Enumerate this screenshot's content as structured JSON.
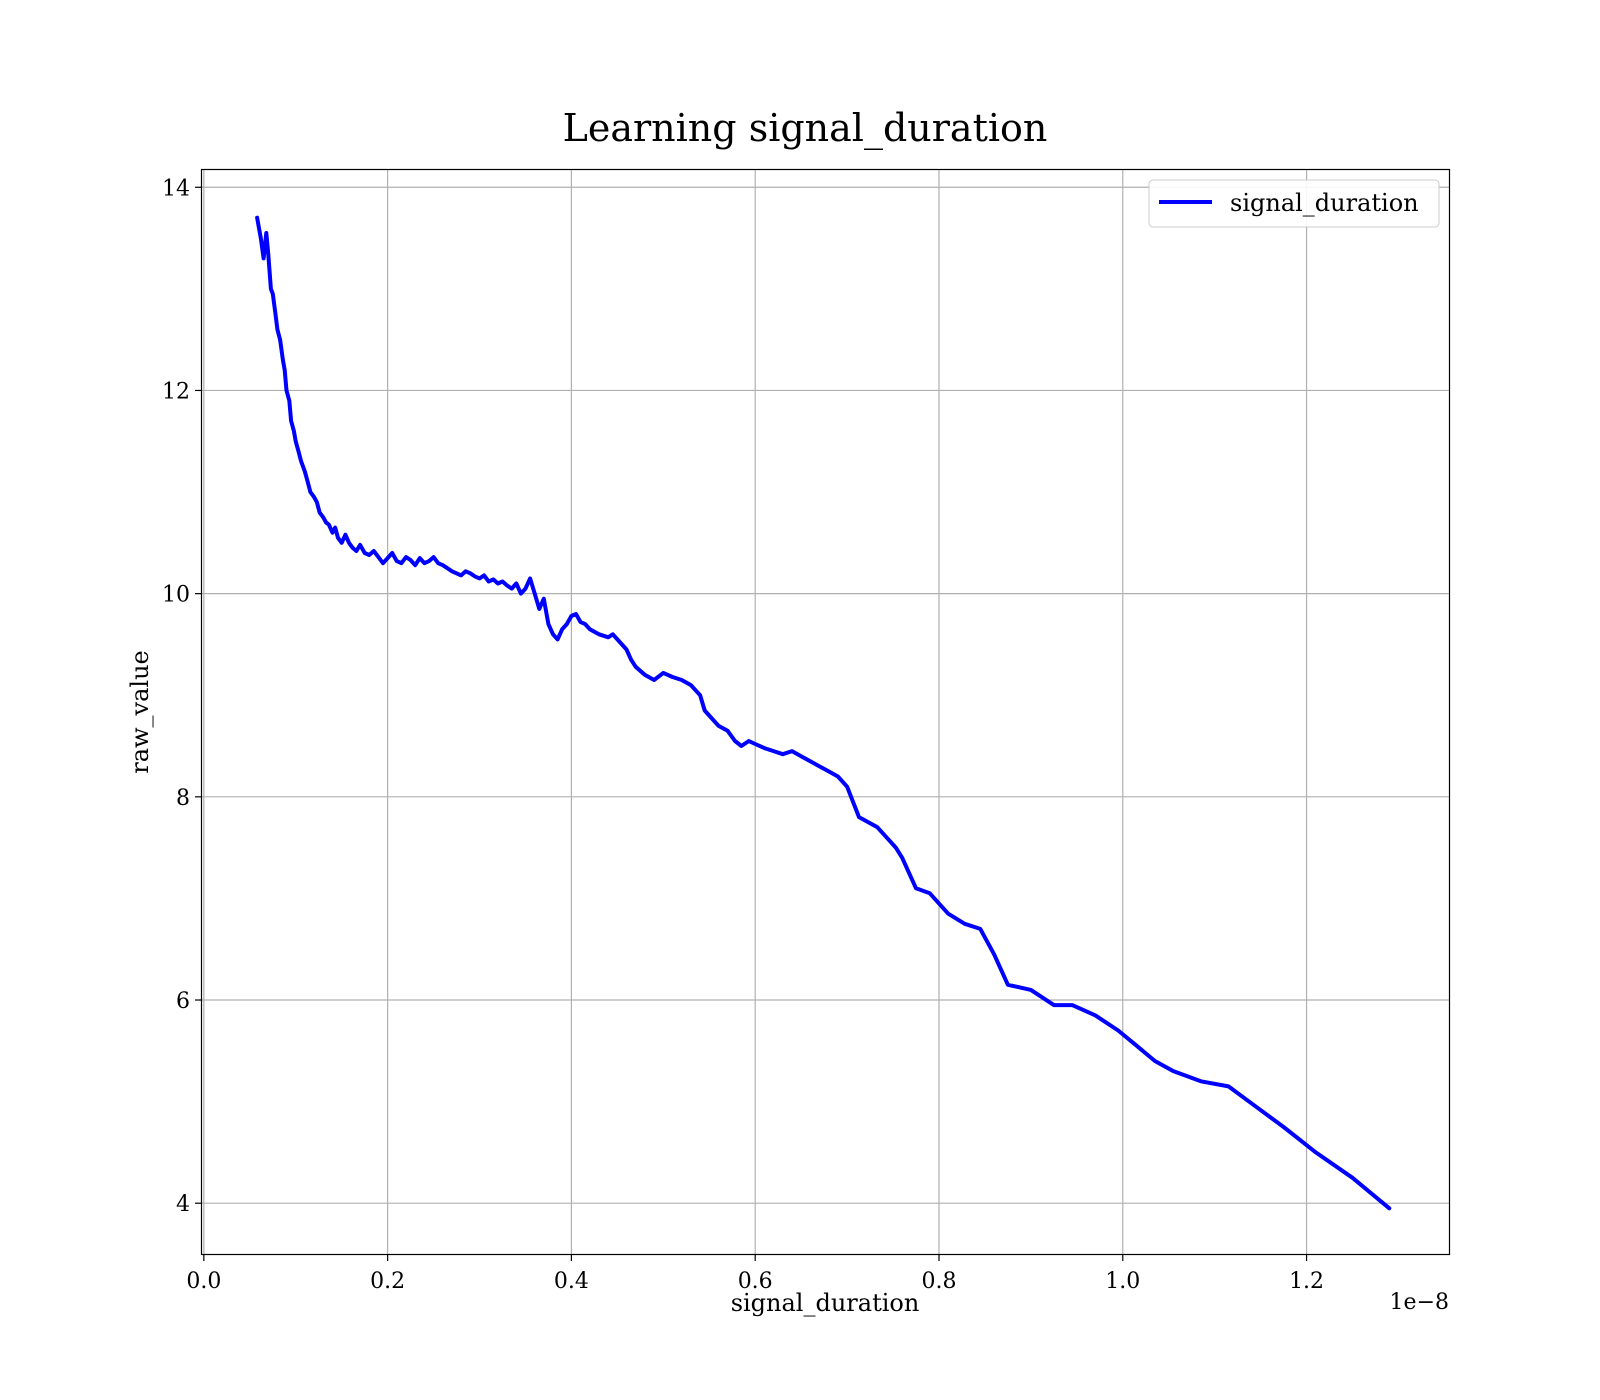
{
  "chart_data": {
    "type": "line",
    "title": "Learning signal_duration",
    "xlabel": "signal_duration",
    "ylabel": "raw_value",
    "x_offset_label": "1e−8",
    "xlim": [
      -0.002,
      1.355
    ],
    "ylim": [
      3.5,
      14.17
    ],
    "xticks": [
      0.0,
      0.2,
      0.4,
      0.6,
      0.8,
      1.0,
      1.2
    ],
    "xtick_labels": [
      "0.0",
      "0.2",
      "0.4",
      "0.6",
      "0.8",
      "1.0",
      "1.2"
    ],
    "yticks": [
      4,
      6,
      8,
      10,
      12,
      14
    ],
    "ytick_labels": [
      "4",
      "6",
      "8",
      "10",
      "12",
      "14"
    ],
    "grid": true,
    "legend_position": "top-right",
    "colors": {
      "series": "#0000ff",
      "grid": "#b0b0b0"
    },
    "series": [
      {
        "name": "signal_duration",
        "x": [
          0.058,
          0.062,
          0.065,
          0.068,
          0.07,
          0.073,
          0.075,
          0.078,
          0.08,
          0.083,
          0.086,
          0.088,
          0.09,
          0.093,
          0.095,
          0.098,
          0.1,
          0.103,
          0.106,
          0.108,
          0.11,
          0.113,
          0.116,
          0.12,
          0.123,
          0.126,
          0.13,
          0.133,
          0.136,
          0.14,
          0.143,
          0.146,
          0.15,
          0.154,
          0.158,
          0.162,
          0.166,
          0.17,
          0.175,
          0.18,
          0.185,
          0.19,
          0.195,
          0.2,
          0.205,
          0.21,
          0.215,
          0.22,
          0.225,
          0.23,
          0.235,
          0.24,
          0.245,
          0.25,
          0.255,
          0.26,
          0.265,
          0.27,
          0.275,
          0.28,
          0.285,
          0.29,
          0.295,
          0.3,
          0.305,
          0.31,
          0.315,
          0.32,
          0.325,
          0.33,
          0.335,
          0.34,
          0.345,
          0.35,
          0.355,
          0.36,
          0.365,
          0.37,
          0.375,
          0.38,
          0.385,
          0.39,
          0.395,
          0.4,
          0.405,
          0.41,
          0.415,
          0.42,
          0.43,
          0.44,
          0.445,
          0.45,
          0.46,
          0.465,
          0.47,
          0.48,
          0.49,
          0.5,
          0.51,
          0.52,
          0.53,
          0.535,
          0.54,
          0.545,
          0.55,
          0.56,
          0.57,
          0.578,
          0.585,
          0.593,
          0.6,
          0.61,
          0.62,
          0.63,
          0.64,
          0.65,
          0.66,
          0.67,
          0.68,
          0.69,
          0.7,
          0.713,
          0.733,
          0.753,
          0.76,
          0.775,
          0.79,
          0.81,
          0.828,
          0.845,
          0.86,
          0.875,
          0.9,
          0.925,
          0.945,
          0.97,
          0.995,
          1.015,
          1.035,
          1.055,
          1.085,
          1.115,
          1.145,
          1.175,
          1.21,
          1.25,
          1.29
        ],
        "y": [
          13.7,
          13.5,
          13.3,
          13.55,
          13.35,
          13.0,
          12.95,
          12.75,
          12.6,
          12.5,
          12.3,
          12.2,
          12.0,
          11.9,
          11.7,
          11.6,
          11.5,
          11.4,
          11.3,
          11.25,
          11.2,
          11.1,
          11.0,
          10.95,
          10.9,
          10.8,
          10.75,
          10.7,
          10.68,
          10.6,
          10.65,
          10.55,
          10.5,
          10.58,
          10.5,
          10.45,
          10.42,
          10.48,
          10.4,
          10.38,
          10.42,
          10.36,
          10.3,
          10.35,
          10.4,
          10.32,
          10.3,
          10.36,
          10.33,
          10.28,
          10.35,
          10.3,
          10.32,
          10.36,
          10.3,
          10.28,
          10.25,
          10.22,
          10.2,
          10.18,
          10.22,
          10.2,
          10.17,
          10.15,
          10.18,
          10.12,
          10.14,
          10.1,
          10.12,
          10.08,
          10.05,
          10.1,
          10.0,
          10.05,
          10.15,
          10.0,
          9.85,
          9.95,
          9.7,
          9.6,
          9.55,
          9.65,
          9.7,
          9.78,
          9.8,
          9.72,
          9.7,
          9.65,
          9.6,
          9.57,
          9.6,
          9.55,
          9.45,
          9.35,
          9.28,
          9.2,
          9.15,
          9.22,
          9.18,
          9.15,
          9.1,
          9.05,
          9.0,
          8.85,
          8.8,
          8.7,
          8.65,
          8.55,
          8.5,
          8.55,
          8.52,
          8.48,
          8.45,
          8.42,
          8.45,
          8.4,
          8.35,
          8.3,
          8.25,
          8.2,
          8.1,
          7.8,
          7.7,
          7.5,
          7.4,
          7.1,
          7.05,
          6.85,
          6.75,
          6.7,
          6.45,
          6.15,
          6.1,
          5.95,
          5.95,
          5.85,
          5.7,
          5.55,
          5.4,
          5.3,
          5.2,
          5.15,
          4.95,
          4.75,
          4.5,
          4.25,
          3.95
        ]
      }
    ]
  }
}
